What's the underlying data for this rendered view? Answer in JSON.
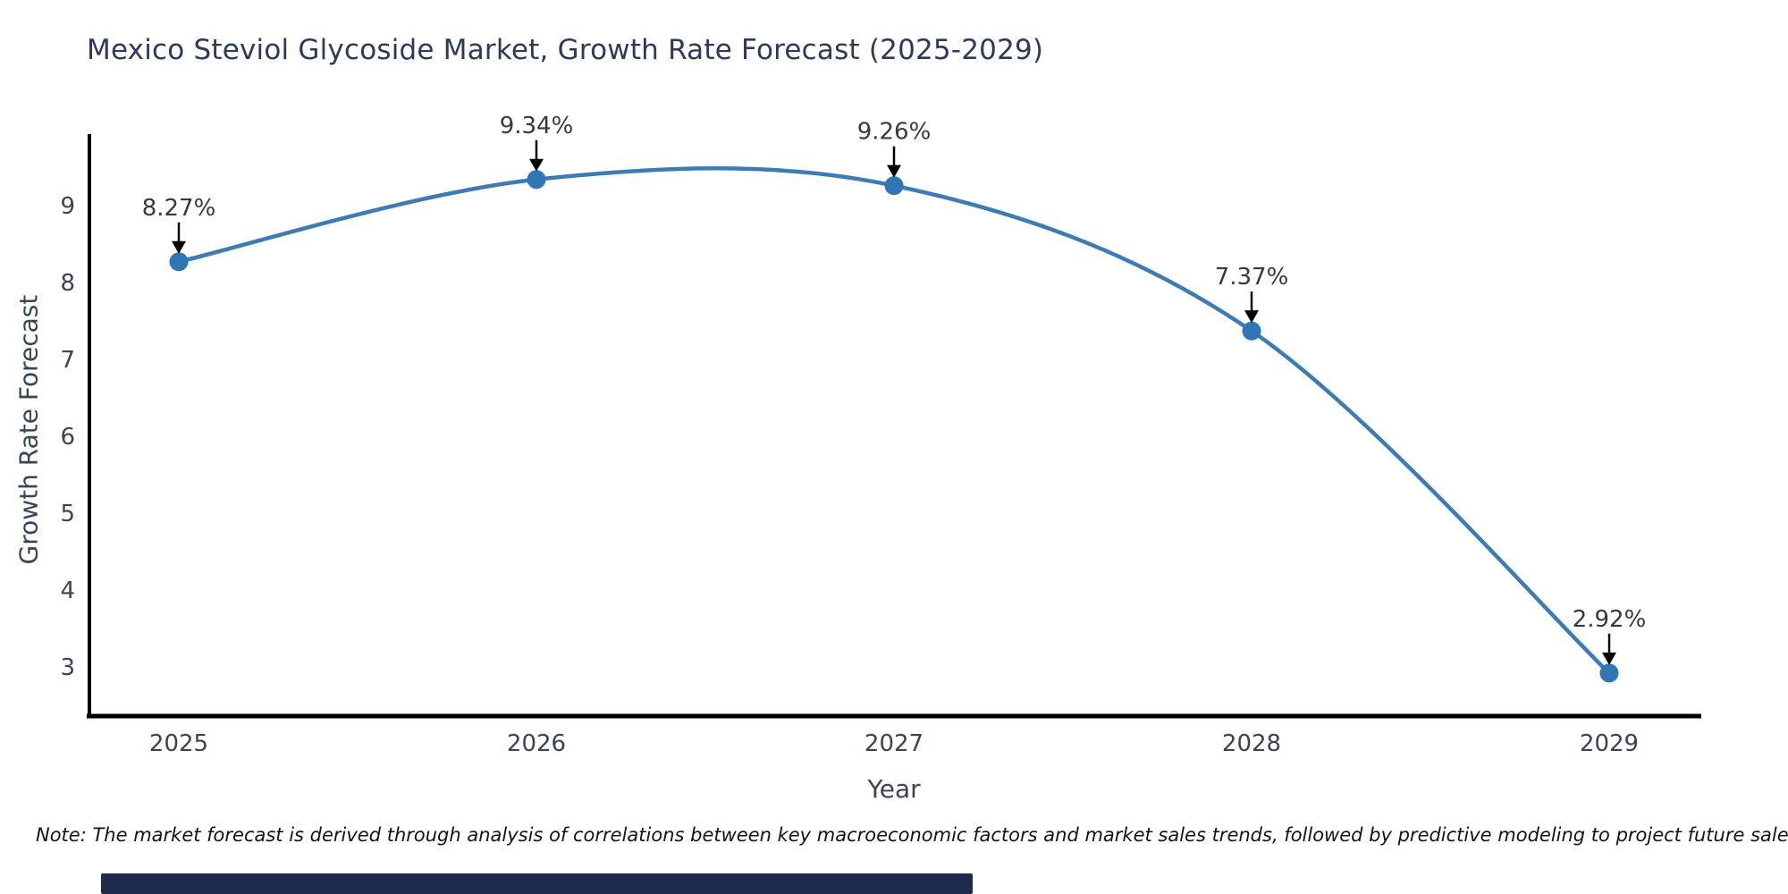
{
  "header": {
    "title": "Mexico Steviol Glycoside Market, Growth Rate Forecast (2025-2029)"
  },
  "chart_data": {
    "type": "line",
    "x": [
      2025,
      2026,
      2027,
      2028,
      2029
    ],
    "values": [
      8.27,
      9.34,
      9.26,
      7.37,
      2.92
    ],
    "point_labels": [
      "8.27%",
      "9.34%",
      "9.26%",
      "7.37%",
      "2.92%"
    ],
    "title": "Mexico Steviol Glycoside Market, Growth Rate Forecast (2025-2029)",
    "xlabel": "Year",
    "ylabel": "Growth Rate Forecast",
    "xticks": [
      "2025",
      "2026",
      "2027",
      "2028",
      "2029"
    ],
    "yticks": [
      3,
      4,
      5,
      6,
      7,
      8,
      9
    ],
    "ylim": [
      2.35,
      9.93
    ],
    "xlim": [
      2024.75,
      2029.26
    ],
    "grid": false,
    "legend": null,
    "annotation_style": "black down-arrow from label to marker",
    "colors": {
      "line": "#3d7bb4",
      "marker": "#2e76b6",
      "axis": "#000000",
      "tick_label": "#3a4454",
      "annotation_text": "#333a42",
      "title": "#2e3a59"
    }
  },
  "footnote": {
    "text": "Note: The market forecast is derived through analysis of correlations between key macroeconomic factors and market sales trends, followed by predictive modeling to project future sales."
  },
  "footer_bar": {
    "color": "#1d2b4f"
  }
}
